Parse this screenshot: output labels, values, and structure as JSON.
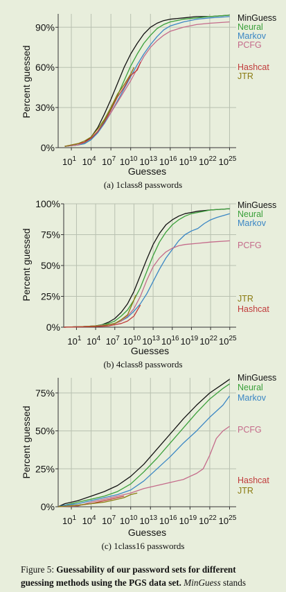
{
  "colors": {
    "MinGuess": "#111111",
    "Neural": "#3aa03a",
    "Markov": "#3a86c4",
    "PCFG": "#c46a8a",
    "Hashcat": "#c03a3a",
    "JTR": "#8a7a10",
    "grid": "#b8c0b0",
    "background": "#e8eedc"
  },
  "chart_data": [
    {
      "type": "line",
      "caption": "(a) 1class8 passwords",
      "xlabel": "Guesses",
      "ylabel": "Percent guessed",
      "x_scale": "log10",
      "xlim_log10": [
        -1,
        26
      ],
      "ylim": [
        0,
        100
      ],
      "xticks_exponents": [
        "1",
        "4",
        "7",
        "10",
        "13",
        "16",
        "19",
        "22",
        "25"
      ],
      "yticks": [
        0,
        30,
        60,
        90
      ],
      "ytick_labels": [
        "0%",
        "30%",
        "60%",
        "90%"
      ],
      "legend": [
        "MinGuess",
        "Neural",
        "Markov",
        "PCFG",
        "Hashcat",
        "JTR"
      ],
      "series": [
        {
          "name": "MinGuess",
          "x_log10": [
            0,
            2,
            3,
            4,
            5,
            6,
            7,
            8,
            9,
            10,
            11,
            12,
            13,
            14,
            15,
            16,
            18,
            20,
            22,
            25
          ],
          "y": [
            1,
            2,
            4,
            8,
            15,
            25,
            36,
            48,
            60,
            70,
            78,
            85,
            90,
            93,
            95,
            96,
            97,
            98,
            98,
            99
          ]
        },
        {
          "name": "Neural",
          "x_log10": [
            0,
            2,
            3,
            4,
            5,
            6,
            7,
            8,
            9,
            10,
            11,
            12,
            13,
            14,
            15,
            16,
            18,
            20,
            22,
            25
          ],
          "y": [
            1,
            2,
            3,
            6,
            12,
            20,
            29,
            39,
            50,
            61,
            70,
            78,
            84,
            89,
            92,
            94,
            96,
            97,
            98,
            99
          ]
        },
        {
          "name": "Markov",
          "x_log10": [
            0,
            2,
            3,
            4,
            5,
            6,
            7,
            8,
            9,
            10,
            11,
            12,
            13,
            14,
            15,
            16,
            18,
            20,
            22,
            25
          ],
          "y": [
            1,
            2,
            3,
            6,
            11,
            18,
            26,
            35,
            44,
            53,
            62,
            70,
            77,
            83,
            88,
            91,
            94,
            96,
            97,
            98
          ]
        },
        {
          "name": "PCFG",
          "x_log10": [
            0,
            2,
            3,
            4,
            5,
            6,
            7,
            8,
            9,
            10,
            11,
            12,
            13,
            14,
            15,
            16,
            18,
            20,
            22,
            25
          ],
          "y": [
            1,
            2,
            4,
            7,
            12,
            19,
            26,
            34,
            42,
            50,
            59,
            68,
            75,
            80,
            84,
            87,
            90,
            92,
            93,
            94
          ]
        },
        {
          "name": "Hashcat",
          "x_log10": [
            0,
            1,
            2,
            3,
            4,
            5,
            6,
            7,
            8,
            9,
            10,
            11,
            11.5
          ],
          "y": [
            1,
            2,
            3,
            4,
            7,
            12,
            19,
            28,
            38,
            45,
            54,
            58,
            64
          ]
        },
        {
          "name": "JTR",
          "x_log10": [
            0,
            1,
            2,
            3,
            4,
            5,
            6,
            7,
            8,
            9,
            10,
            10.5
          ],
          "y": [
            1,
            2,
            3,
            5,
            8,
            14,
            21,
            30,
            40,
            47,
            55,
            60
          ]
        }
      ]
    },
    {
      "type": "line",
      "caption": "(b) 4class8 passwords",
      "xlabel": "Guesses",
      "ylabel": "Percent guessed",
      "x_scale": "log10",
      "xlim_log10": [
        -1,
        26
      ],
      "ylim": [
        0,
        100
      ],
      "xticks_exponents": [
        "1",
        "4",
        "7",
        "10",
        "13",
        "16",
        "19",
        "22",
        "25"
      ],
      "yticks": [
        0,
        25,
        50,
        75,
        100
      ],
      "ytick_labels": [
        "0%",
        "25%",
        "50%",
        "75%",
        "100%"
      ],
      "legend": [
        "MinGuess",
        "Neural",
        "Markov",
        "PCFG",
        "JTR",
        "Hashcat"
      ],
      "series": [
        {
          "name": "MinGuess",
          "x_log10": [
            -1,
            2,
            4,
            5,
            6,
            7,
            8,
            9,
            10,
            11,
            12,
            13,
            14,
            15,
            16,
            17,
            18,
            19,
            20,
            22,
            25
          ],
          "y": [
            0,
            0.5,
            1,
            2,
            4,
            7,
            12,
            19,
            29,
            42,
            55,
            67,
            76,
            83,
            87,
            90,
            92,
            93,
            94,
            95,
            96
          ]
        },
        {
          "name": "Neural",
          "x_log10": [
            -1,
            2,
            4,
            5,
            6,
            7,
            8,
            9,
            10,
            11,
            12,
            13,
            14,
            15,
            16,
            17,
            18,
            19,
            20,
            22,
            25
          ],
          "y": [
            0,
            0.5,
            1,
            2,
            3,
            5,
            9,
            14,
            22,
            32,
            45,
            58,
            69,
            77,
            83,
            87,
            90,
            92,
            93,
            95,
            96
          ]
        },
        {
          "name": "Markov",
          "x_log10": [
            -1,
            2,
            4,
            5,
            6,
            7,
            8,
            9,
            10,
            11,
            12,
            13,
            14,
            15,
            16,
            17,
            18,
            19,
            20,
            21,
            22,
            23,
            25
          ],
          "y": [
            0,
            0.5,
            1,
            1,
            2,
            3,
            5,
            8,
            13,
            19,
            27,
            37,
            47,
            56,
            63,
            70,
            75,
            78,
            80,
            84,
            87,
            89,
            92
          ]
        },
        {
          "name": "PCFG",
          "x_log10": [
            -1,
            2,
            4,
            6,
            7,
            8,
            9,
            10,
            11,
            12,
            13,
            14,
            15,
            16,
            17,
            18,
            20,
            22,
            25
          ],
          "y": [
            0,
            0.5,
            1,
            2,
            3,
            5,
            9,
            15,
            25,
            38,
            49,
            56,
            61,
            64,
            66,
            67,
            68,
            69,
            70
          ]
        },
        {
          "name": "JTR",
          "x_log10": [
            -1,
            2,
            4,
            5,
            6,
            7,
            8,
            9,
            10,
            10.3
          ],
          "y": [
            0,
            0.5,
            1,
            1,
            2,
            3,
            6,
            10,
            22,
            26
          ]
        },
        {
          "name": "Hashcat",
          "x_log10": [
            -1,
            2,
            4,
            6,
            7,
            8,
            9,
            10,
            11
          ],
          "y": [
            0,
            0.3,
            0.5,
            1,
            2,
            3,
            5,
            9,
            18
          ]
        }
      ]
    },
    {
      "type": "line",
      "caption": "(c) 1class16 passwords",
      "xlabel": "Guesses",
      "ylabel": "Percent guessed",
      "x_scale": "log10",
      "xlim_log10": [
        -1,
        26
      ],
      "ylim": [
        0,
        85
      ],
      "xticks_exponents": [
        "1",
        "4",
        "7",
        "10",
        "13",
        "16",
        "19",
        "22",
        "25"
      ],
      "yticks": [
        0,
        25,
        50,
        75
      ],
      "ytick_labels": [
        "0%",
        "25%",
        "50%",
        "75%"
      ],
      "legend": [
        "MinGuess",
        "Neural",
        "Markov",
        "PCFG",
        "Hashcat",
        "JTR"
      ],
      "series": [
        {
          "name": "MinGuess",
          "x_log10": [
            -1,
            0,
            2,
            4,
            6,
            8,
            10,
            12,
            14,
            16,
            18,
            20,
            22,
            24,
            25
          ],
          "y": [
            0,
            2,
            4,
            7,
            10,
            14,
            20,
            28,
            38,
            48,
            58,
            67,
            75,
            81,
            84
          ]
        },
        {
          "name": "Neural",
          "x_log10": [
            -1,
            0,
            2,
            4,
            6,
            8,
            10,
            12,
            14,
            16,
            18,
            20,
            22,
            24,
            25
          ],
          "y": [
            0,
            1,
            3,
            5,
            7,
            10,
            15,
            23,
            32,
            42,
            52,
            62,
            71,
            78,
            81
          ]
        },
        {
          "name": "Markov",
          "x_log10": [
            -1,
            0,
            2,
            4,
            6,
            8,
            10,
            12,
            14,
            16,
            18,
            20,
            22,
            24,
            25
          ],
          "y": [
            0,
            1,
            2,
            4,
            6,
            8,
            11,
            17,
            25,
            33,
            42,
            50,
            59,
            67,
            73
          ]
        },
        {
          "name": "PCFG",
          "x_log10": [
            -1,
            2,
            4,
            6,
            8,
            10,
            12,
            14,
            16,
            18,
            19,
            20,
            21,
            22,
            23,
            24,
            25
          ],
          "y": [
            0,
            0.5,
            3,
            5,
            7,
            9,
            12,
            14,
            16,
            18,
            20,
            22,
            25,
            34,
            45,
            50,
            53
          ]
        },
        {
          "name": "Hashcat",
          "x_log10": [
            -1,
            2,
            4,
            5,
            6,
            7,
            8,
            9
          ],
          "y": [
            0,
            1,
            2,
            3,
            4,
            5,
            6,
            7
          ]
        },
        {
          "name": "JTR",
          "x_log10": [
            -1,
            2,
            4,
            6,
            8,
            9,
            10,
            11
          ],
          "y": [
            0,
            1,
            2,
            3,
            5,
            6,
            8,
            9
          ]
        }
      ]
    }
  ],
  "figure_caption": {
    "label": "Figure 5:",
    "bold": "Guessability of our password sets for different guessing methods using the PGS data set.",
    "italic": "MinGuess",
    "rest": "stands"
  }
}
